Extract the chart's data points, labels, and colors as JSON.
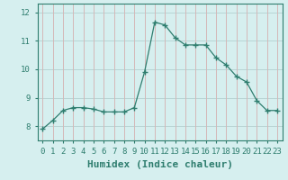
{
  "x": [
    0,
    1,
    2,
    3,
    4,
    5,
    6,
    7,
    8,
    9,
    10,
    11,
    12,
    13,
    14,
    15,
    16,
    17,
    18,
    19,
    20,
    21,
    22,
    23
  ],
  "y": [
    7.9,
    8.2,
    8.55,
    8.65,
    8.65,
    8.6,
    8.5,
    8.5,
    8.5,
    8.65,
    9.9,
    11.65,
    11.55,
    11.1,
    10.85,
    10.85,
    10.85,
    10.4,
    10.15,
    9.75,
    9.55,
    8.9,
    8.55,
    8.55
  ],
  "line_color": "#2e7d6e",
  "marker": "+",
  "marker_size": 4,
  "bg_color": "#d6efef",
  "hgrid_color": "#b8d4d4",
  "vgrid_color": "#d4b8b8",
  "xlabel": "Humidex (Indice chaleur)",
  "xlabel_fontsize": 8,
  "xlim": [
    -0.5,
    23.5
  ],
  "ylim": [
    7.5,
    12.3
  ],
  "yticks": [
    8,
    9,
    10,
    11,
    12
  ],
  "xticks": [
    0,
    1,
    2,
    3,
    4,
    5,
    6,
    7,
    8,
    9,
    10,
    11,
    12,
    13,
    14,
    15,
    16,
    17,
    18,
    19,
    20,
    21,
    22,
    23
  ],
  "tick_fontsize": 6.5,
  "spine_color": "#2e7d6e",
  "tick_color": "#2e7d6e",
  "label_color": "#2e7d6e"
}
